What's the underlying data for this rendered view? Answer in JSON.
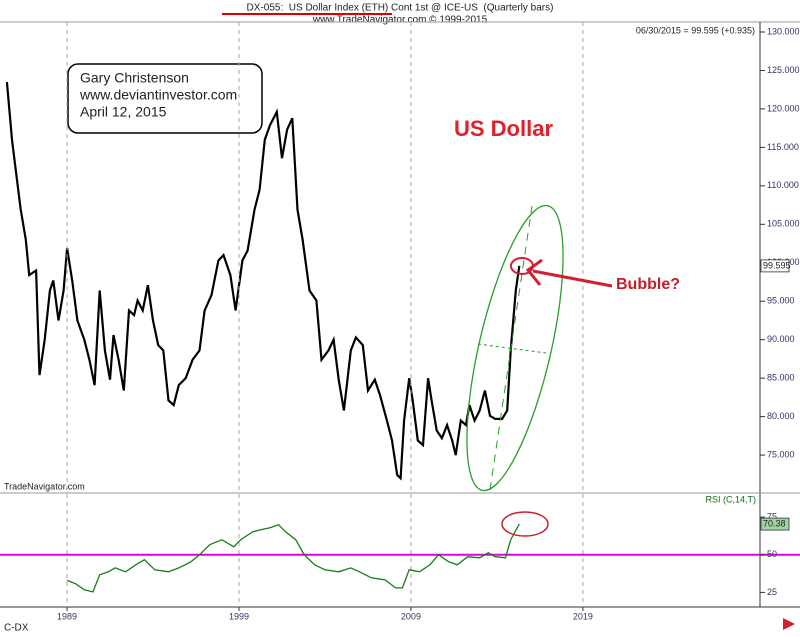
{
  "chart_data": [
    {
      "type": "line",
      "title": "DX-055:  US Dollar Index (ETH) Cont 1st @ ICE-US  (Quarterly bars)",
      "subtitle": "www.TradeNavigator.com © 1999-2015",
      "quote": "06/30/2015 = 99.595 (+0.935)",
      "author_box": [
        "Gary Christenson",
        "www.deviantinvestor.com",
        "April 12, 2015"
      ],
      "label": "US Dollar",
      "callout": "Bubble?",
      "source": "TradeNavigator.com",
      "xlim": [
        1985.1,
        2029.3
      ],
      "x": [
        1985.5,
        1985.8,
        1986.3,
        1986.6,
        1986.8,
        1987.2,
        1987.4,
        1987.7,
        1988.0,
        1988.2,
        1988.5,
        1988.8,
        1989.0,
        1989.3,
        1989.6,
        1990.0,
        1990.3,
        1990.6,
        1990.9,
        1991.2,
        1991.5,
        1991.7,
        1992.0,
        1992.3,
        1992.6,
        1992.9,
        1993.1,
        1993.4,
        1993.7,
        1994.0,
        1994.3,
        1994.6,
        1994.9,
        1995.2,
        1995.5,
        1995.9,
        1996.3,
        1996.7,
        1997.0,
        1997.4,
        1997.8,
        1998.1,
        1998.5,
        1998.8,
        1999.2,
        1999.5,
        1999.9,
        2000.2,
        2000.5,
        2000.8,
        2001.2,
        2001.5,
        2001.8,
        2002.1,
        2002.4,
        2002.7,
        2003.1,
        2003.5,
        2003.8,
        2004.2,
        2004.5,
        2004.8,
        2005.1,
        2005.5,
        2005.8,
        2006.2,
        2006.5,
        2006.9,
        2007.2,
        2007.6,
        2007.9,
        2008.2,
        2008.4,
        2008.6,
        2008.9,
        2009.1,
        2009.4,
        2009.7,
        2010.0,
        2010.2,
        2010.5,
        2010.8,
        2011.1,
        2011.4,
        2011.6,
        2011.9,
        2012.2,
        2012.4,
        2012.7,
        2013.0,
        2013.3,
        2013.6,
        2013.9,
        2014.3,
        2014.6,
        2014.8,
        2015.1,
        2015.3
      ],
      "series": [
        {
          "name": "C-DX",
          "color": "#000000",
          "values": [
            123.5,
            116,
            107,
            103,
            98.4,
            99,
            85.4,
            90,
            96.4,
            97.7,
            92.5,
            96.4,
            101.9,
            97.7,
            92.5,
            90,
            87.4,
            84.1,
            96.4,
            88.6,
            84.8,
            90.6,
            87.4,
            83.4,
            93.8,
            93.2,
            95.1,
            93.8,
            97.1,
            92.5,
            89.3,
            88.6,
            82.1,
            81.5,
            84.1,
            85,
            87.4,
            88.6,
            93.8,
            95.8,
            100.3,
            101,
            98.4,
            93.8,
            100.3,
            101.6,
            106.9,
            109.5,
            116,
            117.9,
            119.6,
            113.6,
            117.3,
            118.8,
            106.9,
            103,
            96.4,
            95.1,
            87.4,
            88.6,
            90,
            84.8,
            80.8,
            88.6,
            90.3,
            89.3,
            83.4,
            84.8,
            82.8,
            79.5,
            76.9,
            72.4,
            72,
            79.5,
            85,
            82.1,
            76.9,
            76.3,
            85,
            82.1,
            78.2,
            77.2,
            78.9,
            76.9,
            75,
            79.5,
            78.9,
            81.5,
            79.5,
            80.8,
            83.4,
            80.1,
            79.7,
            79.7,
            80.8,
            88.6,
            96.4,
            99.595
          ]
        }
      ],
      "ylim": [
        70.2,
        131.3
      ],
      "yticks": [
        {
          "value": 75,
          "label": "75.000"
        },
        {
          "value": 80,
          "label": "80.000"
        },
        {
          "value": 85,
          "label": "85.000"
        },
        {
          "value": 90,
          "label": "90.000"
        },
        {
          "value": 95,
          "label": "95.000"
        },
        {
          "value": 100,
          "label": "100.000"
        },
        {
          "value": 105,
          "label": "105.000"
        },
        {
          "value": 110,
          "label": "110.000"
        },
        {
          "value": 115,
          "label": "115.000"
        },
        {
          "value": 120,
          "label": "120.000"
        },
        {
          "value": 125,
          "label": "125.000"
        },
        {
          "value": 130,
          "label": "130.000"
        }
      ]
    },
    {
      "type": "line",
      "xlim": [
        1985.1,
        2029.3
      ],
      "xticks": [
        1989,
        1999,
        2009,
        2019
      ],
      "grid": "x",
      "x": [
        1989.0,
        1989.5,
        1990.0,
        1990.5,
        1990.9,
        1991.4,
        1991.8,
        1992.4,
        1993.0,
        1993.5,
        1994.1,
        1994.9,
        1995.5,
        1996.2,
        1996.7,
        1997.3,
        1998.0,
        1998.7,
        1999.1,
        1999.8,
        2000.3,
        2000.8,
        2001.3,
        2001.7,
        2002.3,
        2002.8,
        2003.4,
        2004.0,
        2004.8,
        2005.5,
        2006.0,
        2006.7,
        2007.5,
        2008.1,
        2008.5,
        2008.9,
        2009.5,
        2010.1,
        2010.6,
        2011.2,
        2011.7,
        2012.3,
        2013.0,
        2013.5,
        2013.9,
        2014.5,
        2014.8,
        2015.3
      ],
      "series": [
        {
          "name": "RSI (C,14,T)",
          "color": "#1a7a1a",
          "values": [
            33,
            30.7,
            26.7,
            25.3,
            36.7,
            38.7,
            41.3,
            38.7,
            43.3,
            46.7,
            40,
            38.7,
            41.3,
            45.3,
            50,
            56.7,
            60,
            55.3,
            60,
            65.3,
            66.7,
            68,
            70,
            65.3,
            60,
            50,
            43.3,
            40,
            38.7,
            41.3,
            38.7,
            34.7,
            33.3,
            28,
            28,
            40,
            38.7,
            43.3,
            50,
            45.3,
            43.3,
            48.7,
            48,
            51.3,
            48.7,
            48,
            60,
            70.38
          ]
        }
      ],
      "reference_line": {
        "value": 50,
        "color": "#e000e0"
      },
      "ylim": [
        15.3,
        89.7
      ],
      "yticks": [
        25,
        50,
        75
      ]
    }
  ]
}
